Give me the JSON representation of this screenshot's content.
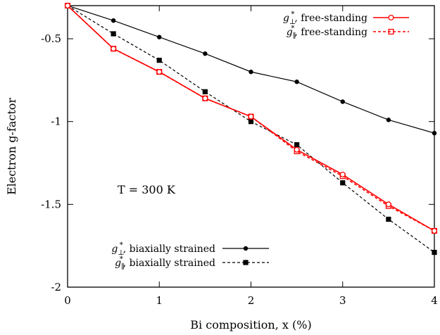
{
  "chart_data": {
    "type": "line",
    "xlabel": "Bi composition, x (%)",
    "ylabel": "Electron g-factor",
    "xlim": [
      0,
      4
    ],
    "ylim": [
      -2,
      -0.3
    ],
    "grid": false,
    "x_ticks": [
      0,
      1,
      2,
      3,
      4
    ],
    "x_tick_labels": [
      "0",
      "1",
      "2",
      "3",
      "4"
    ],
    "y_ticks": [
      -2,
      -1.5,
      -1,
      -0.5
    ],
    "y_tick_labels": [
      "-2",
      "-1.5",
      "-1",
      "-0.5"
    ],
    "annotation": "T = 300 K",
    "legends": [
      {
        "placement": "top-right",
        "entries": [
          "g⊥*, free-standing",
          "g∥*, free-standing"
        ]
      },
      {
        "placement": "bottom-left",
        "entries": [
          "g⊥*, biaxially strained",
          "g∥*, biaxially strained"
        ]
      }
    ],
    "x": [
      0,
      0.5,
      1,
      1.5,
      2,
      2.5,
      3,
      3.5,
      4
    ],
    "series": [
      {
        "name": "g⊥*, free-standing",
        "color": "#ff0000",
        "line": "solid",
        "marker": "open-circle",
        "values": [
          -0.3,
          -0.56,
          -0.7,
          -0.86,
          -0.97,
          -1.17,
          -1.32,
          -1.5,
          -1.66
        ]
      },
      {
        "name": "g∥*, free-standing",
        "color": "#ff0000",
        "line": "dashed",
        "marker": "open-square",
        "values": [
          -0.3,
          -0.56,
          -0.7,
          -0.86,
          -0.97,
          -1.18,
          -1.33,
          -1.51,
          -1.66
        ]
      },
      {
        "name": "g⊥*, biaxially strained",
        "color": "#000000",
        "line": "solid",
        "marker": "filled-circle",
        "values": [
          -0.3,
          -0.39,
          -0.49,
          -0.59,
          -0.7,
          -0.76,
          -0.88,
          -0.99,
          -1.07
        ]
      },
      {
        "name": "g∥*, biaxially strained",
        "color": "#000000",
        "line": "dashed",
        "marker": "filled-square",
        "values": [
          -0.3,
          -0.47,
          -0.63,
          -0.82,
          -1.0,
          -1.14,
          -1.37,
          -1.59,
          -1.79
        ]
      }
    ]
  }
}
